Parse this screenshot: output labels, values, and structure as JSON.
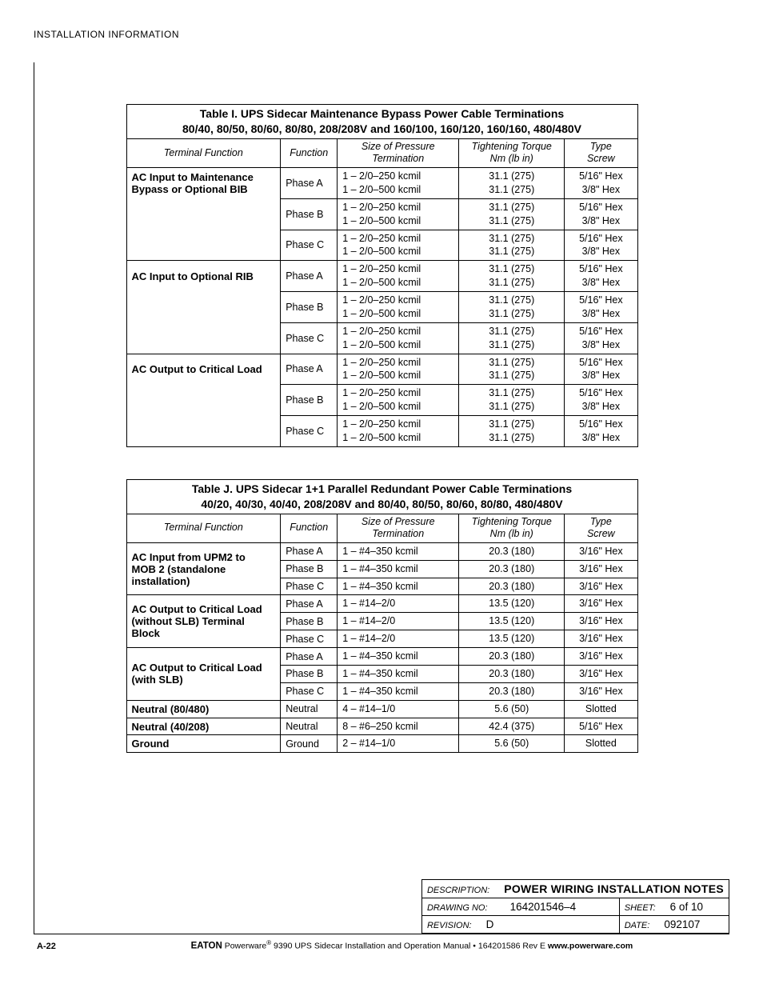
{
  "header": "INSTALLATION INFORMATION",
  "tableI": {
    "title_l1": "Table I. UPS Sidecar Maintenance Bypass Power Cable Terminations",
    "title_l2": "80/40, 80/50, 80/60, 80/80, 208/208V and 160/100, 160/120, 160/160, 480/480V",
    "col_headers": {
      "tf": "Terminal Function",
      "fn": "Function",
      "sz_l1": "Size of Pressure",
      "sz_l2": "Termination",
      "tq_l1": "Tightening Torque",
      "tq_l2": "Nm (lb in)",
      "scr_l1": "Type",
      "scr_l2": "Screw"
    },
    "groups": [
      {
        "label_l1": "AC Input to Maintenance",
        "label_l2": "Bypass or Optional BIB",
        "rows": [
          {
            "fn": "Phase A",
            "sz_l1": "1 – 2/0–250 kcmil",
            "sz_l2": "1 – 2/0–500 kcmil",
            "tq_l1": "31.1 (275)",
            "tq_l2": "31.1 (275)",
            "sc_l1": "5/16\" Hex",
            "sc_l2": "3/8\" Hex"
          },
          {
            "fn": "Phase B",
            "sz_l1": "1 – 2/0–250 kcmil",
            "sz_l2": "1 – 2/0–500 kcmil",
            "tq_l1": "31.1 (275)",
            "tq_l2": "31.1 (275)",
            "sc_l1": "5/16\" Hex",
            "sc_l2": "3/8\" Hex"
          },
          {
            "fn": "Phase C",
            "sz_l1": "1 – 2/0–250 kcmil",
            "sz_l2": "1 – 2/0–500 kcmil",
            "tq_l1": "31.1 (275)",
            "tq_l2": "31.1 (275)",
            "sc_l1": "5/16\" Hex",
            "sc_l2": "3/8\" Hex"
          }
        ]
      },
      {
        "label_l1": "AC Input to Optional RIB",
        "label_l2": "",
        "rows": [
          {
            "fn": "Phase A",
            "sz_l1": "1 – 2/0–250 kcmil",
            "sz_l2": "1 – 2/0–500 kcmil",
            "tq_l1": "31.1 (275)",
            "tq_l2": "31.1 (275)",
            "sc_l1": "5/16\" Hex",
            "sc_l2": "3/8\" Hex"
          },
          {
            "fn": "Phase B",
            "sz_l1": "1 – 2/0–250 kcmil",
            "sz_l2": "1 – 2/0–500 kcmil",
            "tq_l1": "31.1 (275)",
            "tq_l2": "31.1 (275)",
            "sc_l1": "5/16\" Hex",
            "sc_l2": "3/8\" Hex"
          },
          {
            "fn": "Phase C",
            "sz_l1": "1 – 2/0–250 kcmil",
            "sz_l2": "1 – 2/0–500 kcmil",
            "tq_l1": "31.1 (275)",
            "tq_l2": "31.1 (275)",
            "sc_l1": "5/16\" Hex",
            "sc_l2": "3/8\" Hex"
          }
        ]
      },
      {
        "label_l1": "AC Output to Critical Load",
        "label_l2": "",
        "rows": [
          {
            "fn": "Phase A",
            "sz_l1": "1 – 2/0–250 kcmil",
            "sz_l2": "1 – 2/0–500 kcmil",
            "tq_l1": "31.1 (275)",
            "tq_l2": "31.1 (275)",
            "sc_l1": "5/16\" Hex",
            "sc_l2": "3/8\" Hex"
          },
          {
            "fn": "Phase B",
            "sz_l1": "1 – 2/0–250 kcmil",
            "sz_l2": "1 – 2/0–500 kcmil",
            "tq_l1": "31.1 (275)",
            "tq_l2": "31.1 (275)",
            "sc_l1": "5/16\" Hex",
            "sc_l2": "3/8\" Hex"
          },
          {
            "fn": "Phase C",
            "sz_l1": "1 – 2/0–250 kcmil",
            "sz_l2": "1 – 2/0–500 kcmil",
            "tq_l1": "31.1 (275)",
            "tq_l2": "31.1 (275)",
            "sc_l1": "5/16\" Hex",
            "sc_l2": "3/8\" Hex"
          }
        ]
      }
    ]
  },
  "tableJ": {
    "title_l1": "Table J. UPS Sidecar 1+1 Parallel Redundant Power Cable Terminations",
    "title_l2": "40/20, 40/30, 40/40, 208/208V and 80/40, 80/50, 80/60, 80/80, 480/480V",
    "col_headers": {
      "tf": "Terminal Function",
      "fn": "Function",
      "sz_l1": "Size of Pressure",
      "sz_l2": "Termination",
      "tq_l1": "Tightening Torque",
      "tq_l2": "Nm (lb in)",
      "scr_l1": "Type",
      "scr_l2": "Screw"
    },
    "groups": [
      {
        "label_l1": "AC Input from UPM2 to",
        "label_l2": "MOB 2 (standalone",
        "label_l3": "installation)",
        "rows": [
          {
            "fn": "Phase A",
            "sz": "1 – #4–350 kcmil",
            "tq": "20.3 (180)",
            "sc": "3/16\" Hex"
          },
          {
            "fn": "Phase B",
            "sz": "1 – #4–350 kcmil",
            "tq": "20.3 (180)",
            "sc": "3/16\" Hex"
          },
          {
            "fn": "Phase C",
            "sz": "1 – #4–350 kcmil",
            "tq": "20.3 (180)",
            "sc": "3/16\" Hex"
          }
        ]
      },
      {
        "label_l1": "AC Output to Critical Load",
        "label_l2": "(without SLB) Terminal",
        "label_l3": "Block",
        "rows": [
          {
            "fn": "Phase A",
            "sz": "1 – #14–2/0",
            "tq": "13.5 (120)",
            "sc": "3/16\" Hex"
          },
          {
            "fn": "Phase B",
            "sz": "1 – #14–2/0",
            "tq": "13.5 (120)",
            "sc": "3/16\" Hex"
          },
          {
            "fn": "Phase C",
            "sz": "1 – #14–2/0",
            "tq": "13.5 (120)",
            "sc": "3/16\" Hex"
          }
        ]
      },
      {
        "label_l1": "AC Output to Critical Load",
        "label_l2": "(with SLB)",
        "label_l3": "",
        "rows": [
          {
            "fn": "Phase A",
            "sz": "1 – #4–350 kcmil",
            "tq": "20.3 (180)",
            "sc": "3/16\" Hex"
          },
          {
            "fn": "Phase B",
            "sz": "1 – #4–350 kcmil",
            "tq": "20.3 (180)",
            "sc": "3/16\" Hex"
          },
          {
            "fn": "Phase C",
            "sz": "1 – #4–350 kcmil",
            "tq": "20.3 (180)",
            "sc": "3/16\" Hex"
          }
        ]
      }
    ],
    "singles": [
      {
        "tf": "Neutral (80/480)",
        "fn": "Neutral",
        "sz": "4 – #14–1/0",
        "tq": "5.6 (50)",
        "sc": "Slotted"
      },
      {
        "tf": "Neutral (40/208)",
        "fn": "Neutral",
        "sz": "8 – #6–250 kcmil",
        "tq": "42.4 (375)",
        "sc": "5/16\" Hex"
      },
      {
        "tf": "Ground",
        "fn": "Ground",
        "sz": "2 – #14–1/0",
        "tq": "5.6 (50)",
        "sc": "Slotted"
      }
    ]
  },
  "titleblock": {
    "desc_label": "DESCRIPTION:",
    "desc_val": "POWER WIRING INSTALLATION NOTES",
    "drawing_label": "DRAWING NO:",
    "drawing_val": "164201546–4",
    "sheet_label": "SHEET:",
    "sheet_val": "6 of 10",
    "rev_label": "REVISION:",
    "rev_val": "D",
    "date_label": "DATE:",
    "date_val": "092107"
  },
  "footer": {
    "page_num": "A-22",
    "brand": "EATON",
    "product": " Powerware",
    "desc": " 9390 UPS Sidecar Installation and Operation Manual  •  164201586 Rev E ",
    "url": "www.powerware.com"
  }
}
